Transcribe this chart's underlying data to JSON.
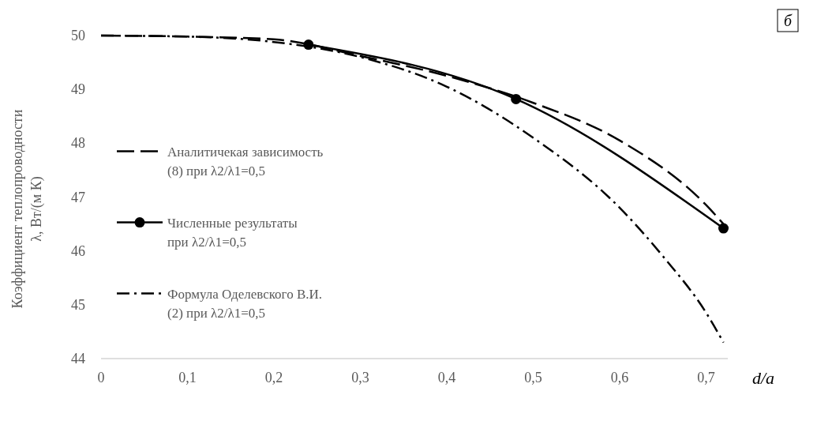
{
  "chart_data": {
    "type": "line",
    "ylabel": "Коэффициент теплопроводности\nλ, Вт/(м К)",
    "xlabel": "d/a",
    "annotations": [
      "б"
    ],
    "xlim": [
      0,
      0.725
    ],
    "ylim": [
      44,
      50
    ],
    "xticks": [
      0,
      {
        "value": 0.1,
        "label": "0,1"
      },
      {
        "value": 0.2,
        "label": "0,2"
      },
      {
        "value": 0.3,
        "label": "0,3"
      },
      {
        "value": 0.4,
        "label": "0,4"
      },
      {
        "value": 0.5,
        "label": "0,5"
      },
      {
        "value": 0.6,
        "label": "0,6"
      },
      {
        "value": 0.7,
        "label": "0,7"
      }
    ],
    "yticks": [
      44,
      45,
      46,
      47,
      48,
      49,
      50
    ],
    "grid": false,
    "legend": "left",
    "series": [
      {
        "name": "Аналитичекая зависимость\n(8) при λ2/λ1=0,5",
        "color": "#000000",
        "line_style": "dashed",
        "marker": "none",
        "x": [
          0,
          0.1,
          0.2,
          0.3,
          0.4,
          0.5,
          0.6,
          0.7,
          0.72
        ],
        "values": [
          50,
          49.98,
          49.93,
          49.62,
          49.25,
          48.75,
          48.05,
          46.85,
          46.5
        ]
      },
      {
        "name": "Численные результаты\nпри λ2/λ1=0,5",
        "color": "#000000",
        "line_style": "solid",
        "marker": "circle",
        "x": [
          0.24,
          0.48,
          0.72
        ],
        "values": [
          49.83,
          48.82,
          46.42
        ]
      },
      {
        "name": "Формула Оделевского В.И.\n(2) при λ2/λ1=0,5",
        "color": "#000000",
        "line_style": "dashdot",
        "marker": "none",
        "x": [
          0,
          0.1,
          0.2,
          0.3,
          0.4,
          0.5,
          0.6,
          0.65,
          0.7,
          0.72
        ],
        "values": [
          50,
          49.98,
          49.88,
          49.6,
          49.05,
          48.1,
          46.8,
          45.9,
          44.85,
          44.3
        ]
      }
    ]
  }
}
